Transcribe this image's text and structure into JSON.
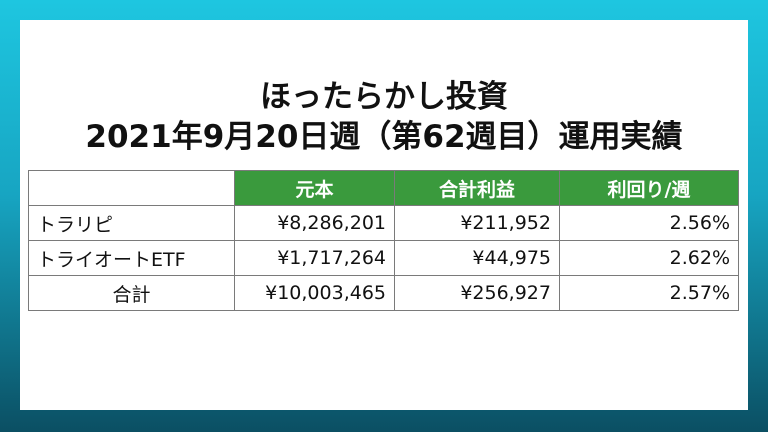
{
  "title": {
    "line1": "ほったらかし投資",
    "line2": "2021年9月20日週（第62週目）運用実績"
  },
  "table": {
    "headers": [
      "",
      "元本",
      "合計利益",
      "利回り/週"
    ],
    "rows": [
      {
        "name": "トラリピ",
        "principal": "¥8,286,201",
        "profit": "¥211,952",
        "yield": "2.56%"
      },
      {
        "name": "トライオートETF",
        "principal": "¥1,717,264",
        "profit": "¥44,975",
        "yield": "2.62%"
      },
      {
        "name": "合計",
        "principal": "¥10,003,465",
        "profit": "¥256,927",
        "yield": "2.57%"
      }
    ]
  },
  "colors": {
    "header_green": "#3a9a3d",
    "background_top": "#1ec6e0",
    "background_bottom": "#0b4f63"
  }
}
